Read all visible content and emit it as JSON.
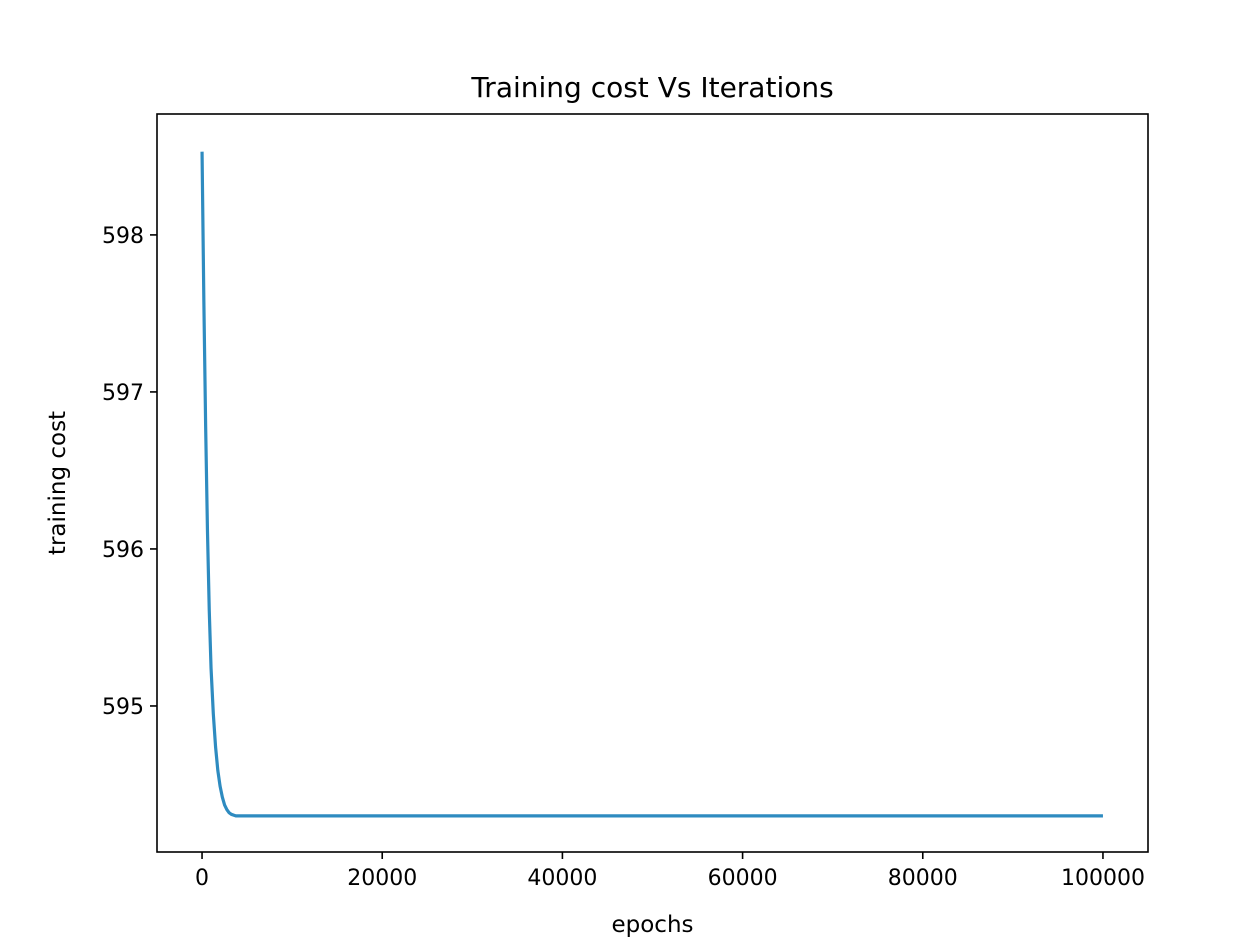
{
  "chart_data": {
    "type": "line",
    "title": "Training cost Vs Iterations",
    "xlabel": "epochs",
    "ylabel": "training cost",
    "xlim": [
      -5000,
      105000
    ],
    "ylim": [
      594.07,
      598.77
    ],
    "xticks": [
      0,
      20000,
      40000,
      60000,
      80000,
      100000
    ],
    "xtick_labels": [
      "0",
      "20000",
      "40000",
      "60000",
      "80000",
      "100000"
    ],
    "yticks": [
      595,
      596,
      597,
      598
    ],
    "ytick_labels": [
      "595",
      "596",
      "597",
      "598"
    ],
    "grid": false,
    "legend": "none",
    "series": [
      {
        "color": "#2e8bc0",
        "x": [
          0,
          200,
          400,
          600,
          800,
          1000,
          1250,
          1500,
          1750,
          2000,
          2250,
          2500,
          2750,
          3000,
          3250,
          3500,
          3750,
          4000,
          4250,
          4500,
          4750,
          5000,
          6000,
          8000,
          10000,
          20000,
          40000,
          60000,
          80000,
          100000
        ],
        "y": [
          598.53,
          597.58,
          596.78,
          596.12,
          595.61,
          595.24,
          594.95,
          594.74,
          594.59,
          594.49,
          594.42,
          594.37,
          594.34,
          594.32,
          594.31,
          594.305,
          594.3,
          594.3,
          594.3,
          594.3,
          594.3,
          594.3,
          594.3,
          594.3,
          594.3,
          594.3,
          594.3,
          594.3,
          594.3,
          594.3
        ]
      }
    ]
  }
}
